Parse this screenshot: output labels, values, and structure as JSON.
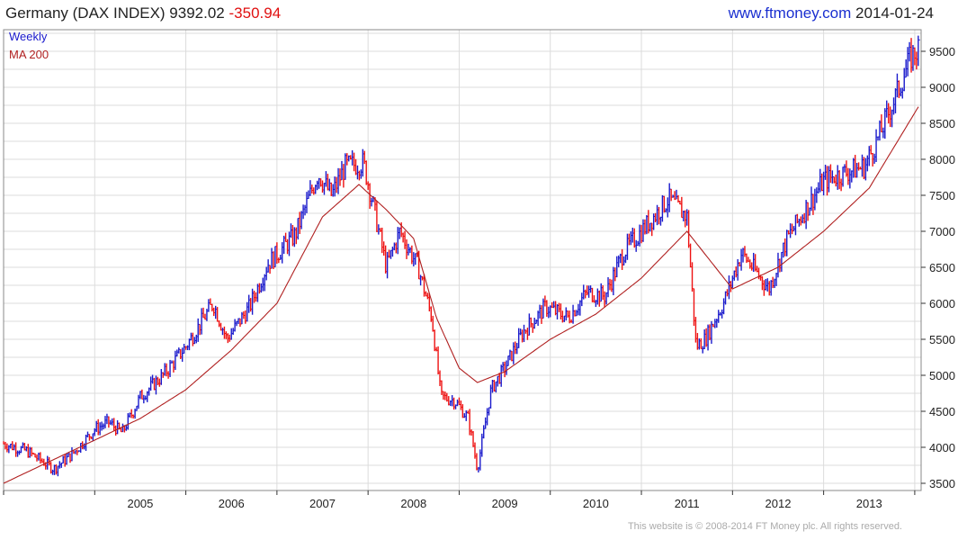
{
  "header": {
    "title": "Germany (DAX INDEX) 9392.02",
    "change": "-350.94",
    "site": "www.ftmoney.com",
    "date": "2014-01-24"
  },
  "footer": {
    "copyright": "This website is © 2008-2014 FT Money plc. All rights reserved."
  },
  "colors": {
    "up_bar": "#1a1acc",
    "down_bar": "#ee1111",
    "ma_line": "#b02020",
    "grid": "#dcdcdc",
    "legend_weekly": "#1a1acc",
    "legend_ma": "#b02020"
  },
  "chart_data": {
    "type": "line",
    "legend": [
      {
        "name": "Weekly",
        "color": "#1a1acc"
      },
      {
        "name": "MA 200",
        "color": "#b02020"
      }
    ],
    "legend_position": "top-left",
    "y_axis_position": "right",
    "grid": true,
    "ylim": [
      3400,
      9800
    ],
    "yticks": [
      3500,
      4000,
      4500,
      5000,
      5500,
      6000,
      6500,
      7000,
      7500,
      8000,
      8500,
      9000,
      9500
    ],
    "xlim": [
      2004.0,
      2014.07
    ],
    "xticks": [
      {
        "label": "2005",
        "value": 2005
      },
      {
        "label": "2006",
        "value": 2006
      },
      {
        "label": "2007",
        "value": 2007
      },
      {
        "label": "2008",
        "value": 2008
      },
      {
        "label": "2009",
        "value": 2009
      },
      {
        "label": "2010",
        "value": 2010
      },
      {
        "label": "2011",
        "value": 2011
      },
      {
        "label": "2012",
        "value": 2012
      },
      {
        "label": "2013",
        "value": 2013
      }
    ],
    "price_weekly": {
      "x": [
        2004.0,
        2004.25,
        2004.55,
        2004.75,
        2005.0,
        2005.15,
        2005.3,
        2005.5,
        2005.75,
        2006.0,
        2006.3,
        2006.45,
        2006.7,
        2006.9,
        2007.2,
        2007.45,
        2007.6,
        2007.75,
        2007.95,
        2008.05,
        2008.2,
        2008.35,
        2008.55,
        2008.7,
        2008.8,
        2008.95,
        2009.1,
        2009.2,
        2009.35,
        2009.5,
        2009.7,
        2009.95,
        2010.2,
        2010.4,
        2010.6,
        2010.8,
        2011.1,
        2011.3,
        2011.5,
        2011.6,
        2011.7,
        2011.9,
        2012.1,
        2012.4,
        2012.6,
        2012.8,
        2013.0,
        2013.2,
        2013.45,
        2013.6,
        2013.8,
        2013.95,
        2014.05
      ],
      "close": [
        4050,
        3950,
        3700,
        3900,
        4250,
        4350,
        4200,
        4700,
        5000,
        5400,
        6000,
        5500,
        5950,
        6550,
        6950,
        7800,
        7500,
        7900,
        7950,
        7400,
        6500,
        7000,
        6500,
        5800,
        4700,
        4650,
        4400,
        3700,
        4800,
        5100,
        5600,
        5950,
        5800,
        6150,
        6100,
        6700,
        7150,
        7450,
        7200,
        5400,
        5500,
        6000,
        6700,
        6200,
        6900,
        7300,
        7700,
        7800,
        7900,
        8300,
        8900,
        9400,
        9550
      ]
    },
    "ma_200": {
      "x": [
        2004.0,
        2004.5,
        2005.0,
        2005.5,
        2006.0,
        2006.5,
        2007.0,
        2007.5,
        2007.9,
        2008.2,
        2008.5,
        2008.75,
        2009.0,
        2009.2,
        2009.5,
        2010.0,
        2010.5,
        2011.0,
        2011.5,
        2011.75,
        2012.0,
        2012.5,
        2013.0,
        2013.5,
        2014.05
      ],
      "y": [
        3500,
        3800,
        4100,
        4400,
        4800,
        5350,
        6000,
        7200,
        7650,
        7300,
        6900,
        5800,
        5100,
        4900,
        5050,
        5500,
        5850,
        6350,
        7000,
        6600,
        6200,
        6500,
        7000,
        7600,
        8750
      ]
    }
  }
}
